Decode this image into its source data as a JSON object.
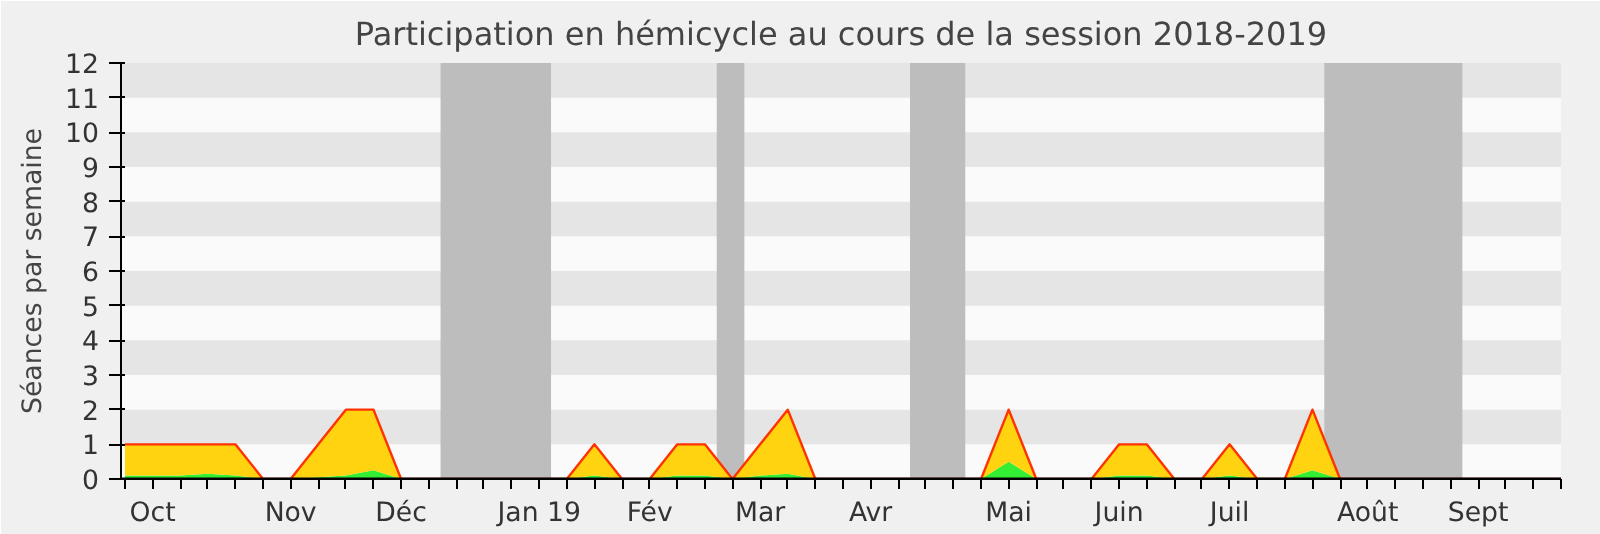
{
  "chart_data": {
    "type": "area",
    "title": "Participation en hémicycle au cours de la session 2018-2019",
    "ylabel": "Séances par semaine",
    "stacked": true,
    "x": [
      "2018-09-24",
      "2018-10-01",
      "2018-10-08",
      "2018-10-15",
      "2018-10-22",
      "2018-10-29",
      "2018-11-05",
      "2018-11-12",
      "2018-11-19",
      "2018-11-26",
      "2018-12-03",
      "2018-12-10",
      "2018-12-17",
      "2018-12-24",
      "2018-12-31",
      "2019-01-07",
      "2019-01-14",
      "2019-01-21",
      "2019-01-28",
      "2019-02-04",
      "2019-02-11",
      "2019-02-18",
      "2019-02-25",
      "2019-03-04",
      "2019-03-11",
      "2019-03-18",
      "2019-03-25",
      "2019-04-01",
      "2019-04-08",
      "2019-04-15",
      "2019-04-22",
      "2019-04-29",
      "2019-05-06",
      "2019-05-13",
      "2019-05-20",
      "2019-05-27",
      "2019-06-03",
      "2019-06-10",
      "2019-06-17",
      "2019-06-24",
      "2019-07-01",
      "2019-07-08",
      "2019-07-15",
      "2019-07-22",
      "2019-07-29",
      "2019-08-05",
      "2019-08-12",
      "2019-08-19",
      "2019-08-26",
      "2019-09-02",
      "2019-09-09",
      "2019-09-16",
      "2019-09-23"
    ],
    "series": [
      {
        "color": "#33ee33",
        "values": [
          0.1,
          0.1,
          0.1,
          0.15,
          0.1,
          0,
          0,
          0.05,
          0.1,
          0.25,
          0,
          0,
          0,
          0,
          0,
          0,
          0,
          0.1,
          0,
          0,
          0.1,
          0.1,
          0,
          0.1,
          0.15,
          0,
          0,
          0,
          0,
          0,
          0,
          0,
          0.5,
          0,
          0,
          0,
          0.1,
          0.1,
          0,
          0,
          0.1,
          0,
          0,
          0.25,
          0,
          0,
          0,
          0,
          0,
          0,
          0,
          0,
          0
        ]
      },
      {
        "color": "#ffd310",
        "values": [
          0.9,
          0.9,
          0.9,
          0.85,
          0.9,
          0,
          0,
          0.95,
          1.9,
          1.75,
          0,
          0,
          0,
          0,
          0,
          0,
          0,
          0.9,
          0,
          0,
          0.9,
          0.9,
          0,
          0.9,
          1.85,
          0,
          0,
          0,
          0,
          0,
          0,
          0,
          1.5,
          0,
          0,
          0,
          0.9,
          0.9,
          0,
          0,
          0.9,
          0,
          0,
          1.75,
          0,
          0,
          0,
          0,
          0,
          0,
          0,
          0,
          0
        ]
      }
    ],
    "bands": [
      {
        "axis": "y",
        "from": 1,
        "to": 2,
        "color": "#e5e5e5"
      },
      {
        "axis": "y",
        "from": 3,
        "to": 4,
        "color": "#e5e5e5"
      },
      {
        "axis": "y",
        "from": 5,
        "to": 6,
        "color": "#e5e5e5"
      },
      {
        "axis": "y",
        "from": 7,
        "to": 8,
        "color": "#e5e5e5"
      },
      {
        "axis": "y",
        "from": 9,
        "to": 10,
        "color": "#e5e5e5"
      },
      {
        "axis": "y",
        "from": 11,
        "to": 12,
        "color": "#e5e5e5"
      },
      {
        "axis": "x",
        "from": "2018-12-13",
        "to": "2019-01-10",
        "color": "#bdbdbd"
      },
      {
        "axis": "x",
        "from": "2019-02-21",
        "to": "2019-02-28",
        "color": "#bdbdbd"
      },
      {
        "axis": "x",
        "from": "2019-04-11",
        "to": "2019-04-25",
        "color": "#bdbdbd"
      },
      {
        "axis": "x",
        "from": "2019-07-25",
        "to": "2019-08-29",
        "color": "#bdbdbd"
      }
    ],
    "xlim": [
      "2018-09-23",
      "2019-09-23"
    ],
    "xticks": [
      {
        "value": "2018-10-01",
        "label": "Oct"
      },
      {
        "value": "2018-11-05",
        "label": "Nov"
      },
      {
        "value": "2018-12-03",
        "label": "Déc"
      },
      {
        "value": "2019-01-07",
        "label": "Jan 19"
      },
      {
        "value": "2019-02-04",
        "label": "Fév"
      },
      {
        "value": "2019-03-04",
        "label": "Mar"
      },
      {
        "value": "2019-04-01",
        "label": "Avr"
      },
      {
        "value": "2019-05-06",
        "label": "Mai"
      },
      {
        "value": "2019-06-03",
        "label": "Juin"
      },
      {
        "value": "2019-07-01",
        "label": "Juil"
      },
      {
        "value": "2019-08-05",
        "label": "Août"
      },
      {
        "value": "2019-09-02",
        "label": "Sept"
      }
    ],
    "ylim": [
      0,
      12
    ],
    "yticks": [
      0,
      1,
      2,
      3,
      4,
      5,
      6,
      7,
      8,
      9,
      10,
      11,
      12
    ]
  }
}
